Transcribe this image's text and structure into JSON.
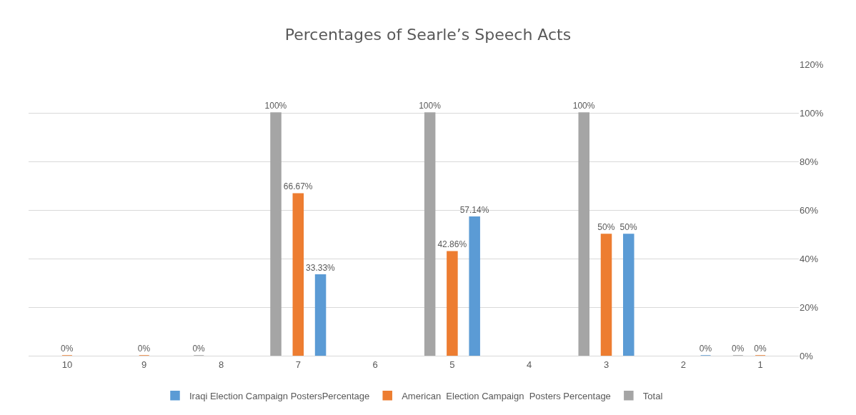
{
  "chart_data": {
    "type": "bar",
    "title": "Percentages of Searle’s Speech Acts",
    "categories": [
      "10",
      "9",
      "8",
      "7",
      "6",
      "5",
      "4",
      "3",
      "2",
      "1"
    ],
    "series": [
      {
        "name": "Iraqi Election Campaign PostersPercentage",
        "color": "#5b9bd5",
        "values": [
          null,
          null,
          null,
          33.33,
          null,
          57.14,
          null,
          50,
          0,
          null
        ],
        "value_labels": [
          null,
          null,
          null,
          "33.33%",
          null,
          "57.14%",
          null,
          "50%",
          "0%",
          null
        ]
      },
      {
        "name": "American  Election Campaign  Posters Percentage",
        "color": "#ed7d31",
        "values": [
          0,
          0,
          null,
          66.67,
          null,
          42.86,
          null,
          50,
          null,
          0
        ],
        "value_labels": [
          "0%",
          "0%",
          null,
          "66.67%",
          null,
          "42.86%",
          null,
          "50%",
          null,
          "0%"
        ]
      },
      {
        "name": "Total",
        "color": "#a5a5a5",
        "values": [
          null,
          null,
          0,
          100,
          null,
          100,
          null,
          100,
          null,
          0
        ],
        "value_labels": [
          null,
          null,
          "0%",
          "100%",
          null,
          "100%",
          null,
          "100%",
          null,
          "0%"
        ]
      }
    ],
    "ylim": [
      0,
      120
    ],
    "yticks": [
      {
        "value": 0,
        "label": "0%"
      },
      {
        "value": 20,
        "label": "20%"
      },
      {
        "value": 40,
        "label": "40%"
      },
      {
        "value": 60,
        "label": "60%"
      },
      {
        "value": 80,
        "label": "80%"
      },
      {
        "value": 100,
        "label": "100%"
      },
      {
        "value": 120,
        "label": "120%"
      }
    ],
    "grid": "y",
    "legend": "bottom"
  }
}
